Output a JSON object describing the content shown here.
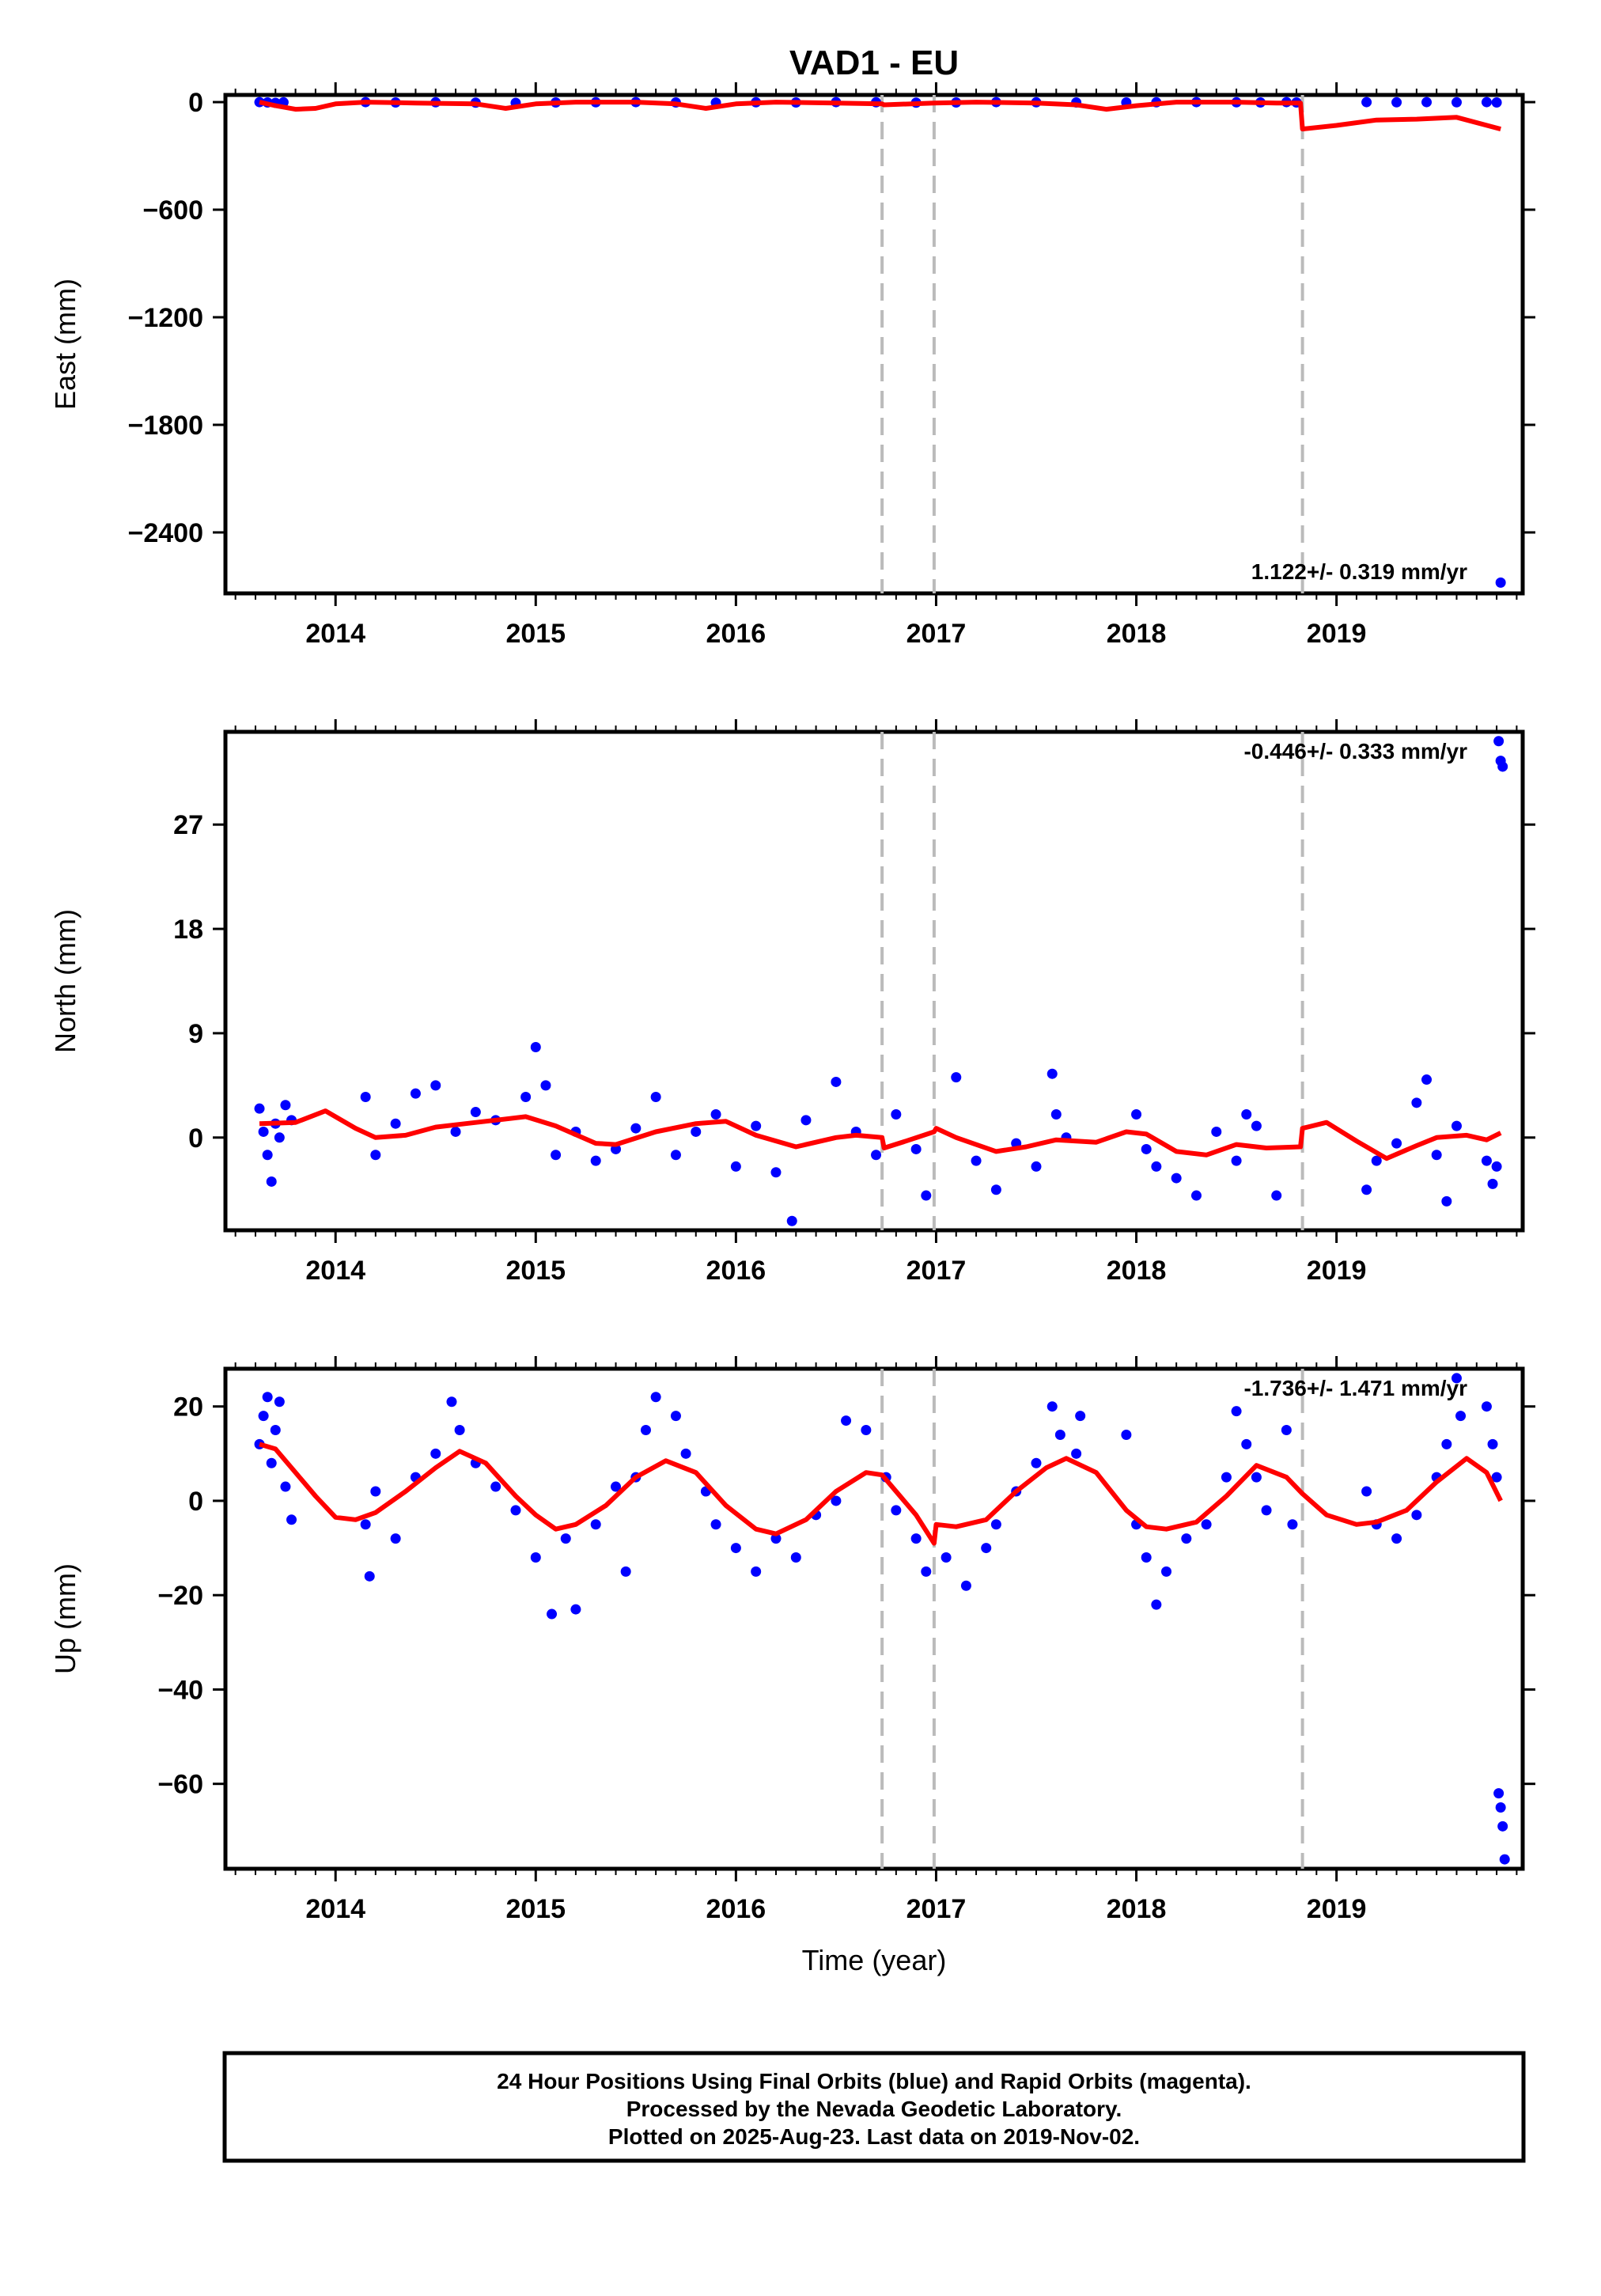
{
  "title": "VAD1 - EU",
  "xlabel": "Time (year)",
  "footer": {
    "line1": "24 Hour Positions Using Final Orbits (blue) and Rapid Orbits (magenta).",
    "line2": "Processed by the Nevada Geodetic Laboratory.",
    "line3": "Plotted on 2025-Aug-23. Last data on 2019-Nov-02."
  },
  "colors": {
    "final_orbit_points": "#0000ff",
    "model_fit": "#ff0000",
    "offset_lines": "#bbbbbb"
  },
  "chart_data": [
    {
      "type": "scatter",
      "panel": "east",
      "ylabel": "East (mm)",
      "rate_text": "1.122+/- 0.319 mm/yr",
      "xlim": [
        2013.45,
        2019.93
      ],
      "ylim": [
        -2740,
        40
      ],
      "yticks": [
        0,
        -600,
        -1200,
        -1800,
        -2400
      ],
      "xticks": [
        2014,
        2015,
        2016,
        2017,
        2018,
        2019
      ],
      "offset_epochs": [
        2016.73,
        2016.99,
        2018.83
      ],
      "points": [
        [
          2013.62,
          0
        ],
        [
          2013.66,
          -2
        ],
        [
          2013.7,
          -4
        ],
        [
          2013.74,
          -1
        ],
        [
          2014.15,
          0
        ],
        [
          2014.3,
          -2
        ],
        [
          2014.5,
          -1
        ],
        [
          2014.7,
          -3
        ],
        [
          2014.9,
          -4
        ],
        [
          2015.1,
          -2
        ],
        [
          2015.3,
          -1
        ],
        [
          2015.5,
          0
        ],
        [
          2015.7,
          -2
        ],
        [
          2015.9,
          -3
        ],
        [
          2016.1,
          -1
        ],
        [
          2016.3,
          -2
        ],
        [
          2016.5,
          0
        ],
        [
          2016.7,
          -1
        ],
        [
          2016.9,
          -3
        ],
        [
          2017.1,
          -2
        ],
        [
          2017.3,
          0
        ],
        [
          2017.5,
          -1
        ],
        [
          2017.7,
          -2
        ],
        [
          2017.95,
          -2
        ],
        [
          2018.1,
          -1
        ],
        [
          2018.3,
          0
        ],
        [
          2018.5,
          -1
        ],
        [
          2018.62,
          -2
        ],
        [
          2018.75,
          0
        ],
        [
          2018.8,
          -2
        ],
        [
          2019.15,
          0
        ],
        [
          2019.3,
          -1
        ],
        [
          2019.45,
          0
        ],
        [
          2019.6,
          -1
        ],
        [
          2019.75,
          0
        ],
        [
          2019.8,
          -2
        ],
        [
          2019.82,
          -2680
        ]
      ],
      "fit": [
        [
          2013.62,
          0
        ],
        [
          2013.7,
          -20
        ],
        [
          2013.8,
          -40
        ],
        [
          2013.9,
          -35
        ],
        [
          2014.0,
          -10
        ],
        [
          2014.15,
          0
        ],
        [
          2014.4,
          -5
        ],
        [
          2014.7,
          -10
        ],
        [
          2014.85,
          -35
        ],
        [
          2015.0,
          -10
        ],
        [
          2015.2,
          0
        ],
        [
          2015.5,
          0
        ],
        [
          2015.7,
          -10
        ],
        [
          2015.85,
          -35
        ],
        [
          2016.0,
          -10
        ],
        [
          2016.2,
          0
        ],
        [
          2016.5,
          -5
        ],
        [
          2016.73,
          -10
        ],
        [
          2016.74,
          -15
        ],
        [
          2016.99,
          -5
        ],
        [
          2017.2,
          0
        ],
        [
          2017.5,
          -5
        ],
        [
          2017.7,
          -15
        ],
        [
          2017.85,
          -40
        ],
        [
          2018.0,
          -20
        ],
        [
          2018.2,
          0
        ],
        [
          2018.5,
          0
        ],
        [
          2018.7,
          -5
        ],
        [
          2018.82,
          -5
        ],
        [
          2018.83,
          -150
        ],
        [
          2019.0,
          -130
        ],
        [
          2019.2,
          -100
        ],
        [
          2019.4,
          -95
        ],
        [
          2019.6,
          -85
        ],
        [
          2019.82,
          -150
        ]
      ]
    },
    {
      "type": "scatter",
      "panel": "north",
      "ylabel": "North (mm)",
      "rate_text": "-0.446+/- 0.333 mm/yr",
      "xlim": [
        2013.45,
        2019.93
      ],
      "ylim": [
        -8,
        35
      ],
      "yticks": [
        27,
        18,
        9,
        0
      ],
      "xticks": [
        2014,
        2015,
        2016,
        2017,
        2018,
        2019
      ],
      "offset_epochs": [
        2016.73,
        2016.99,
        2018.83
      ],
      "points": [
        [
          2013.62,
          2.5
        ],
        [
          2013.64,
          0.5
        ],
        [
          2013.66,
          -1.5
        ],
        [
          2013.68,
          -3.8
        ],
        [
          2013.7,
          1.2
        ],
        [
          2013.72,
          0
        ],
        [
          2013.75,
          2.8
        ],
        [
          2013.78,
          1.5
        ],
        [
          2014.15,
          3.5
        ],
        [
          2014.2,
          -1.5
        ],
        [
          2014.3,
          1.2
        ],
        [
          2014.4,
          3.8
        ],
        [
          2014.5,
          4.5
        ],
        [
          2014.6,
          0.5
        ],
        [
          2014.7,
          2.2
        ],
        [
          2014.8,
          1.5
        ],
        [
          2014.95,
          3.5
        ],
        [
          2015.0,
          7.8
        ],
        [
          2015.05,
          4.5
        ],
        [
          2015.1,
          -1.5
        ],
        [
          2015.2,
          0.5
        ],
        [
          2015.3,
          -2
        ],
        [
          2015.4,
          -1
        ],
        [
          2015.5,
          0.8
        ],
        [
          2015.6,
          3.5
        ],
        [
          2015.7,
          -1.5
        ],
        [
          2015.8,
          0.5
        ],
        [
          2015.9,
          2
        ],
        [
          2016.0,
          -2.5
        ],
        [
          2016.1,
          1
        ],
        [
          2016.2,
          -3
        ],
        [
          2016.28,
          -7.2
        ],
        [
          2016.35,
          1.5
        ],
        [
          2016.5,
          4.8
        ],
        [
          2016.6,
          0.5
        ],
        [
          2016.7,
          -1.5
        ],
        [
          2016.8,
          2
        ],
        [
          2016.9,
          -1
        ],
        [
          2016.95,
          -5
        ],
        [
          2017.1,
          5.2
        ],
        [
          2017.2,
          -2
        ],
        [
          2017.3,
          -4.5
        ],
        [
          2017.4,
          -0.5
        ],
        [
          2017.5,
          -2.5
        ],
        [
          2017.58,
          5.5
        ],
        [
          2017.6,
          2
        ],
        [
          2017.65,
          0
        ],
        [
          2018.0,
          2
        ],
        [
          2018.05,
          -1
        ],
        [
          2018.1,
          -2.5
        ],
        [
          2018.2,
          -3.5
        ],
        [
          2018.3,
          -5
        ],
        [
          2018.4,
          0.5
        ],
        [
          2018.5,
          -2
        ],
        [
          2018.55,
          2
        ],
        [
          2018.6,
          1
        ],
        [
          2018.7,
          -5
        ],
        [
          2019.15,
          -4.5
        ],
        [
          2019.2,
          -2
        ],
        [
          2019.3,
          -0.5
        ],
        [
          2019.4,
          3
        ],
        [
          2019.45,
          5
        ],
        [
          2019.5,
          -1.5
        ],
        [
          2019.55,
          -5.5
        ],
        [
          2019.6,
          1
        ],
        [
          2019.75,
          -2
        ],
        [
          2019.78,
          -4
        ],
        [
          2019.8,
          -2.5
        ],
        [
          2019.81,
          34.2
        ],
        [
          2019.82,
          32.5
        ],
        [
          2019.83,
          32
        ]
      ],
      "fit": [
        [
          2013.62,
          1.2
        ],
        [
          2013.8,
          1.3
        ],
        [
          2013.95,
          2.3
        ],
        [
          2014.1,
          0.8
        ],
        [
          2014.2,
          0
        ],
        [
          2014.35,
          0.2
        ],
        [
          2014.5,
          0.9
        ],
        [
          2014.65,
          1.2
        ],
        [
          2014.8,
          1.5
        ],
        [
          2014.95,
          1.8
        ],
        [
          2015.1,
          1
        ],
        [
          2015.3,
          -0.5
        ],
        [
          2015.4,
          -0.6
        ],
        [
          2015.6,
          0.5
        ],
        [
          2015.8,
          1.2
        ],
        [
          2015.95,
          1.4
        ],
        [
          2016.1,
          0.2
        ],
        [
          2016.3,
          -0.8
        ],
        [
          2016.5,
          0
        ],
        [
          2016.6,
          0.2
        ],
        [
          2016.73,
          0
        ],
        [
          2016.74,
          -0.9
        ],
        [
          2016.85,
          -0.3
        ],
        [
          2016.99,
          0.5
        ],
        [
          2017.0,
          0.8
        ],
        [
          2017.1,
          0
        ],
        [
          2017.3,
          -1.2
        ],
        [
          2017.45,
          -0.8
        ],
        [
          2017.6,
          -0.2
        ],
        [
          2017.8,
          -0.4
        ],
        [
          2017.95,
          0.5
        ],
        [
          2018.05,
          0.3
        ],
        [
          2018.2,
          -1.2
        ],
        [
          2018.35,
          -1.5
        ],
        [
          2018.5,
          -0.6
        ],
        [
          2018.65,
          -0.9
        ],
        [
          2018.82,
          -0.8
        ],
        [
          2018.83,
          0.8
        ],
        [
          2018.95,
          1.3
        ],
        [
          2019.1,
          -0.3
        ],
        [
          2019.25,
          -1.8
        ],
        [
          2019.4,
          -0.7
        ],
        [
          2019.5,
          0
        ],
        [
          2019.65,
          0.2
        ],
        [
          2019.75,
          -0.2
        ],
        [
          2019.82,
          0.4
        ]
      ]
    },
    {
      "type": "scatter",
      "panel": "up",
      "ylabel": "Up (mm)",
      "rate_text": "-1.736+/- 1.471 mm/yr",
      "xlim": [
        2013.45,
        2019.93
      ],
      "ylim": [
        -78,
        28
      ],
      "yticks": [
        20,
        0,
        -20,
        -40,
        -60
      ],
      "xticks": [
        2014,
        2015,
        2016,
        2017,
        2018,
        2019
      ],
      "offset_epochs": [
        2016.73,
        2016.99,
        2018.83
      ],
      "points": [
        [
          2013.62,
          12
        ],
        [
          2013.64,
          18
        ],
        [
          2013.66,
          22
        ],
        [
          2013.68,
          8
        ],
        [
          2013.7,
          15
        ],
        [
          2013.72,
          21
        ],
        [
          2013.75,
          3
        ],
        [
          2013.78,
          -4
        ],
        [
          2014.15,
          -5
        ],
        [
          2014.17,
          -16
        ],
        [
          2014.2,
          2
        ],
        [
          2014.3,
          -8
        ],
        [
          2014.4,
          5
        ],
        [
          2014.5,
          10
        ],
        [
          2014.58,
          21
        ],
        [
          2014.62,
          15
        ],
        [
          2014.7,
          8
        ],
        [
          2014.8,
          3
        ],
        [
          2014.9,
          -2
        ],
        [
          2015.0,
          -12
        ],
        [
          2015.08,
          -24
        ],
        [
          2015.15,
          -8
        ],
        [
          2015.2,
          -23
        ],
        [
          2015.3,
          -5
        ],
        [
          2015.4,
          3
        ],
        [
          2015.45,
          -15
        ],
        [
          2015.5,
          5
        ],
        [
          2015.55,
          15
        ],
        [
          2015.6,
          22
        ],
        [
          2015.7,
          18
        ],
        [
          2015.75,
          10
        ],
        [
          2015.85,
          2
        ],
        [
          2015.9,
          -5
        ],
        [
          2016.0,
          -10
        ],
        [
          2016.1,
          -15
        ],
        [
          2016.2,
          -8
        ],
        [
          2016.3,
          -12
        ],
        [
          2016.4,
          -3
        ],
        [
          2016.5,
          0
        ],
        [
          2016.55,
          17
        ],
        [
          2016.65,
          15
        ],
        [
          2016.75,
          5
        ],
        [
          2016.8,
          -2
        ],
        [
          2016.9,
          -8
        ],
        [
          2016.95,
          -15
        ],
        [
          2017.05,
          -12
        ],
        [
          2017.15,
          -18
        ],
        [
          2017.25,
          -10
        ],
        [
          2017.3,
          -5
        ],
        [
          2017.4,
          2
        ],
        [
          2017.5,
          8
        ],
        [
          2017.58,
          20
        ],
        [
          2017.62,
          14
        ],
        [
          2017.7,
          10
        ],
        [
          2017.72,
          18
        ],
        [
          2017.95,
          14
        ],
        [
          2018.0,
          -5
        ],
        [
          2018.05,
          -12
        ],
        [
          2018.1,
          -22
        ],
        [
          2018.15,
          -15
        ],
        [
          2018.25,
          -8
        ],
        [
          2018.35,
          -5
        ],
        [
          2018.45,
          5
        ],
        [
          2018.5,
          19
        ],
        [
          2018.55,
          12
        ],
        [
          2018.6,
          5
        ],
        [
          2018.65,
          -2
        ],
        [
          2018.75,
          15
        ],
        [
          2018.78,
          -5
        ],
        [
          2019.15,
          2
        ],
        [
          2019.2,
          -5
        ],
        [
          2019.3,
          -8
        ],
        [
          2019.4,
          -3
        ],
        [
          2019.5,
          5
        ],
        [
          2019.55,
          12
        ],
        [
          2019.6,
          26
        ],
        [
          2019.62,
          18
        ],
        [
          2019.75,
          20
        ],
        [
          2019.78,
          12
        ],
        [
          2019.8,
          5
        ],
        [
          2019.81,
          -62
        ],
        [
          2019.82,
          -65
        ],
        [
          2019.83,
          -69
        ],
        [
          2019.84,
          -76
        ]
      ],
      "fit": [
        [
          2013.62,
          12
        ],
        [
          2013.7,
          11
        ],
        [
          2013.8,
          6
        ],
        [
          2013.9,
          1
        ],
        [
          2014.0,
          -3.5
        ],
        [
          2014.1,
          -4
        ],
        [
          2014.2,
          -2.5
        ],
        [
          2014.35,
          2
        ],
        [
          2014.5,
          7
        ],
        [
          2014.62,
          10.5
        ],
        [
          2014.75,
          8
        ],
        [
          2014.9,
          1
        ],
        [
          2015.0,
          -3
        ],
        [
          2015.1,
          -6
        ],
        [
          2015.2,
          -5
        ],
        [
          2015.35,
          -1
        ],
        [
          2015.5,
          5
        ],
        [
          2015.65,
          8.5
        ],
        [
          2015.8,
          6
        ],
        [
          2015.95,
          -1
        ],
        [
          2016.1,
          -6
        ],
        [
          2016.2,
          -7
        ],
        [
          2016.35,
          -4
        ],
        [
          2016.5,
          2
        ],
        [
          2016.65,
          6
        ],
        [
          2016.73,
          5.5
        ],
        [
          2016.8,
          2
        ],
        [
          2016.9,
          -3
        ],
        [
          2016.99,
          -9
        ],
        [
          2017.0,
          -5
        ],
        [
          2017.1,
          -5.5
        ],
        [
          2017.25,
          -4
        ],
        [
          2017.4,
          2
        ],
        [
          2017.55,
          7
        ],
        [
          2017.65,
          9
        ],
        [
          2017.8,
          6
        ],
        [
          2017.95,
          -2
        ],
        [
          2018.05,
          -5.5
        ],
        [
          2018.15,
          -6
        ],
        [
          2018.3,
          -4.5
        ],
        [
          2018.45,
          1
        ],
        [
          2018.6,
          7.5
        ],
        [
          2018.75,
          5
        ],
        [
          2018.83,
          1.5
        ],
        [
          2018.95,
          -3
        ],
        [
          2019.1,
          -5
        ],
        [
          2019.2,
          -4.5
        ],
        [
          2019.35,
          -2
        ],
        [
          2019.5,
          4
        ],
        [
          2019.65,
          9
        ],
        [
          2019.75,
          6
        ],
        [
          2019.82,
          0
        ]
      ]
    }
  ]
}
